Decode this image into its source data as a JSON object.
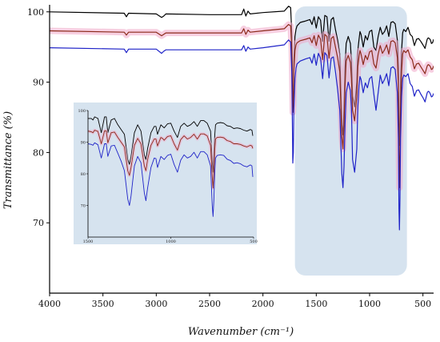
{
  "chart_data": [
    {
      "type": "line",
      "xlabel": "Wavenumber (cm⁻¹)",
      "ylabel": "Transmittance (%)",
      "xlim": [
        4000,
        400
      ],
      "ylim": [
        60,
        101
      ],
      "x_ticks": [
        4000,
        3500,
        3000,
        2500,
        2000,
        1500,
        1000,
        500
      ],
      "y_ticks": [
        70,
        80,
        90,
        100
      ],
      "highlight_region": [
        1700,
        650
      ],
      "series": [
        {
          "color": "#000000",
          "x": [
            4000,
            3300,
            3280,
            3260,
            3000,
            2950,
            2930,
            2910,
            2500,
            2200,
            2180,
            2160,
            2140,
            2120,
            2000,
            1800,
            1760,
            1740,
            1730,
            1725,
            1720,
            1715,
            1710,
            1700,
            1690,
            1680,
            1650,
            1600,
            1560,
            1540,
            1520,
            1500,
            1480,
            1460,
            1440,
            1420,
            1400,
            1380,
            1360,
            1340,
            1320,
            1300,
            1280,
            1260,
            1250,
            1240,
            1230,
            1220,
            1200,
            1180,
            1170,
            1160,
            1140,
            1120,
            1110,
            1100,
            1090,
            1080,
            1060,
            1040,
            1020,
            1000,
            980,
            960,
            940,
            920,
            900,
            880,
            860,
            840,
            820,
            800,
            780,
            760,
            740,
            730,
            725,
            720,
            715,
            710,
            700,
            690,
            680,
            660,
            640,
            620,
            600,
            580,
            560,
            540,
            520,
            500,
            480,
            460,
            450,
            440,
            430,
            420,
            410,
            400
          ],
          "y": [
            100,
            99.8,
            99.3,
            99.8,
            99.7,
            99.2,
            99.4,
            99.7,
            99.6,
            99.6,
            100.4,
            99.4,
            100.1,
            99.7,
            99.9,
            100.1,
            100.8,
            100.6,
            97,
            93,
            86.5,
            88,
            93,
            96.5,
            97.5,
            98,
            98.5,
            98.7,
            98.9,
            98.2,
            99.3,
            97.7,
            99.3,
            98.8,
            95.8,
            99.5,
            99.3,
            95.8,
            98.9,
            99.2,
            97.5,
            96,
            94,
            84,
            82.5,
            86,
            92,
            95.5,
            96.5,
            95.5,
            93,
            88,
            86.5,
            90,
            94.5,
            96,
            97.2,
            96.8,
            95,
            96.6,
            96,
            97.2,
            97.4,
            95,
            94.5,
            96.5,
            97.8,
            96.8,
            97.2,
            98,
            96.5,
            98.5,
            98.6,
            98.3,
            96,
            92,
            83,
            81,
            85,
            90,
            94.5,
            97,
            97.5,
            97.2,
            97.8,
            96.8,
            96.5,
            95.2,
            96.1,
            96.2,
            95.8,
            95.3,
            94.8,
            96.1,
            96.3,
            96.2,
            96,
            95.5,
            95.6,
            96.1
          ]
        },
        {
          "color": "#8b2a1a",
          "x": [
            4000,
            3300,
            3280,
            3260,
            3000,
            2950,
            2930,
            2910,
            2500,
            2200,
            2180,
            2160,
            2140,
            2120,
            2000,
            1800,
            1760,
            1740,
            1730,
            1725,
            1720,
            1715,
            1710,
            1700,
            1690,
            1680,
            1650,
            1600,
            1560,
            1540,
            1520,
            1500,
            1480,
            1460,
            1440,
            1420,
            1400,
            1380,
            1360,
            1340,
            1320,
            1300,
            1280,
            1260,
            1250,
            1240,
            1230,
            1220,
            1200,
            1180,
            1170,
            1160,
            1140,
            1120,
            1110,
            1100,
            1090,
            1080,
            1060,
            1040,
            1020,
            1000,
            980,
            960,
            940,
            920,
            900,
            880,
            860,
            840,
            820,
            800,
            780,
            760,
            740,
            730,
            725,
            720,
            715,
            710,
            700,
            690,
            680,
            660,
            640,
            620,
            600,
            580,
            560,
            540,
            520,
            500,
            480,
            460,
            450,
            440,
            430,
            420,
            410,
            400
          ],
          "y": [
            97.3,
            97.1,
            96.7,
            97.1,
            97.1,
            96.6,
            96.8,
            97.0,
            97.0,
            97.0,
            97.6,
            96.8,
            97.4,
            97.1,
            97.3,
            97.6,
            98.2,
            98.0,
            94.8,
            91,
            85.7,
            87.2,
            91.5,
            94.5,
            95.3,
            95.6,
            95.9,
            96.1,
            96.3,
            95.6,
            96.6,
            95.2,
            96.7,
            96.1,
            93.2,
            96.8,
            96.5,
            93.4,
            96.2,
            96.5,
            95,
            93.5,
            91.5,
            82.2,
            80.5,
            84,
            89.5,
            93,
            93.8,
            92.8,
            90.5,
            86,
            84.5,
            88,
            92.2,
            93.6,
            94.5,
            94,
            92.5,
            93.8,
            93.2,
            94.3,
            94.5,
            92.6,
            92,
            94,
            95.2,
            94.1,
            94.6,
            95.3,
            94,
            95.8,
            95.9,
            95.6,
            93.5,
            89.5,
            79.5,
            75,
            80,
            86.5,
            91.5,
            94,
            94.5,
            94.2,
            94.6,
            93.6,
            93.2,
            91.9,
            92.6,
            92.7,
            92.2,
            91.7,
            91.2,
            92.3,
            92.5,
            92.4,
            92.2,
            91.8,
            91.9,
            92.3
          ]
        },
        {
          "color": "#1f23c8",
          "x": [
            4000,
            3300,
            3280,
            3260,
            3000,
            2950,
            2930,
            2910,
            2500,
            2200,
            2180,
            2160,
            2140,
            2120,
            2000,
            1800,
            1760,
            1740,
            1730,
            1725,
            1720,
            1715,
            1710,
            1700,
            1690,
            1680,
            1650,
            1600,
            1560,
            1540,
            1520,
            1500,
            1480,
            1460,
            1440,
            1420,
            1400,
            1380,
            1360,
            1340,
            1320,
            1300,
            1280,
            1260,
            1250,
            1240,
            1230,
            1220,
            1200,
            1180,
            1170,
            1160,
            1140,
            1120,
            1110,
            1100,
            1090,
            1080,
            1060,
            1040,
            1020,
            1000,
            980,
            960,
            940,
            920,
            900,
            880,
            860,
            840,
            820,
            800,
            780,
            760,
            740,
            730,
            725,
            720,
            715,
            710,
            700,
            690,
            680,
            660,
            640,
            620,
            600,
            580,
            560,
            540,
            520,
            500,
            480,
            460,
            450,
            440,
            430,
            420,
            410,
            400
          ],
          "y": [
            94.9,
            94.7,
            94.2,
            94.7,
            94.7,
            94.1,
            94.4,
            94.6,
            94.6,
            94.6,
            95.2,
            94.4,
            95.0,
            94.7,
            94.9,
            95.3,
            96.0,
            95.7,
            91.5,
            86,
            78.5,
            80,
            86,
            90.5,
            92,
            92.6,
            93,
            93.3,
            93.5,
            92.7,
            94,
            92.4,
            94.1,
            93.4,
            90.5,
            94.2,
            93.8,
            90.6,
            93.4,
            93.6,
            91.5,
            89,
            86,
            77,
            75,
            78,
            84,
            88.5,
            90,
            88.8,
            86.2,
            79,
            77.2,
            80.5,
            86.5,
            89.5,
            90.8,
            90.4,
            88.5,
            89.9,
            89.2,
            90.5,
            90.8,
            88.3,
            86,
            88.5,
            91,
            89.8,
            90.4,
            91.2,
            89.5,
            92,
            92.2,
            91.8,
            88.5,
            82,
            72,
            69,
            73.5,
            82,
            88,
            90.5,
            91,
            90.8,
            91.2,
            89.8,
            89.4,
            88,
            88.8,
            88.9,
            88.3,
            87.8,
            87.2,
            88.5,
            88.7,
            88.6,
            88.3,
            87.9,
            88,
            88.4
          ]
        }
      ]
    },
    {
      "type": "line",
      "inset": true,
      "xlim": [
        1500,
        500
      ],
      "ylim": [
        60,
        100
      ],
      "x_ticks": [
        1500,
        1000,
        500
      ],
      "y_ticks": [
        70,
        80,
        90,
        100
      ],
      "series": [
        {
          "color": "#000000",
          "x": [
            1500,
            1480,
            1470,
            1460,
            1440,
            1420,
            1400,
            1390,
            1380,
            1360,
            1340,
            1320,
            1300,
            1280,
            1260,
            1250,
            1240,
            1220,
            1200,
            1180,
            1160,
            1150,
            1140,
            1120,
            1100,
            1090,
            1080,
            1060,
            1050,
            1040,
            1020,
            1000,
            980,
            960,
            940,
            920,
            900,
            880,
            860,
            840,
            820,
            800,
            780,
            760,
            750,
            745,
            740,
            735,
            730,
            720,
            700,
            680,
            660,
            640,
            620,
            600,
            580,
            560,
            540,
            520,
            510,
            505
          ],
          "y": [
            97.5,
            97.5,
            97,
            98,
            97.5,
            93,
            98,
            98,
            93,
            97,
            97.5,
            95.5,
            94,
            92.5,
            84.5,
            83,
            85.5,
            93,
            95.5,
            93.5,
            86,
            84.5,
            88,
            93,
            95,
            95,
            92.5,
            95.5,
            95,
            94.5,
            95.8,
            96,
            93.5,
            91.5,
            95,
            96,
            95,
            95.5,
            96.5,
            95,
            96.8,
            96.8,
            96,
            93.5,
            84,
            80.5,
            85,
            92,
            95.5,
            96,
            96.2,
            96,
            95.2,
            95,
            94.3,
            94.5,
            94.3,
            93.8,
            93.5,
            94,
            93.8,
            92
          ]
        },
        {
          "color": "#8b2a1a",
          "x": [
            1500,
            1480,
            1470,
            1460,
            1440,
            1420,
            1400,
            1390,
            1380,
            1360,
            1340,
            1320,
            1300,
            1280,
            1260,
            1250,
            1240,
            1220,
            1200,
            1180,
            1160,
            1150,
            1140,
            1120,
            1100,
            1090,
            1080,
            1060,
            1050,
            1040,
            1020,
            1000,
            980,
            960,
            940,
            920,
            900,
            880,
            860,
            840,
            820,
            800,
            780,
            760,
            750,
            745,
            740,
            735,
            730,
            720,
            700,
            680,
            660,
            640,
            620,
            600,
            580,
            560,
            540,
            520,
            510,
            505
          ],
          "y": [
            93.5,
            93.3,
            93,
            93.8,
            93.4,
            89.5,
            93.6,
            93.6,
            89.8,
            93,
            93.2,
            91.5,
            90,
            88.5,
            81,
            79.5,
            82,
            89,
            91.2,
            89.5,
            82.5,
            81,
            84.5,
            89,
            91,
            91,
            88.8,
            91.5,
            91.2,
            90.6,
            91.8,
            92,
            89.5,
            87.5,
            90.8,
            92,
            91,
            91.5,
            92.5,
            91,
            92.6,
            92.6,
            92,
            89,
            79,
            75.5,
            80,
            87.5,
            91,
            91.5,
            91.6,
            91.4,
            90.5,
            90.2,
            89.5,
            89.5,
            89.3,
            88.8,
            88.5,
            89,
            88.8,
            88
          ]
        },
        {
          "color": "#1f23c8",
          "x": [
            1500,
            1480,
            1470,
            1460,
            1440,
            1420,
            1400,
            1390,
            1380,
            1360,
            1340,
            1320,
            1300,
            1280,
            1260,
            1250,
            1240,
            1220,
            1200,
            1180,
            1160,
            1150,
            1140,
            1120,
            1100,
            1090,
            1080,
            1060,
            1050,
            1040,
            1020,
            1000,
            980,
            960,
            940,
            920,
            900,
            880,
            860,
            840,
            820,
            800,
            780,
            760,
            750,
            745,
            740,
            735,
            730,
            720,
            700,
            680,
            660,
            640,
            620,
            600,
            580,
            560,
            540,
            520,
            510,
            505
          ],
          "y": [
            89.5,
            89.3,
            89,
            89.8,
            89.2,
            85,
            89.5,
            89.5,
            85.5,
            88.8,
            89,
            86.5,
            84,
            81,
            72,
            70,
            73,
            82.5,
            85.5,
            83.5,
            74,
            71.5,
            75.5,
            82,
            85,
            84.8,
            82,
            85.5,
            85,
            84.5,
            85.8,
            86.2,
            83,
            80.5,
            84.3,
            86,
            85,
            85.5,
            86.8,
            85,
            87,
            87,
            86,
            82.5,
            70,
            66.5,
            71.5,
            80.5,
            85,
            85.8,
            86,
            85.8,
            84.6,
            84.2,
            83.3,
            83.5,
            83.2,
            82.5,
            82.2,
            82.8,
            82.5,
            79
          ]
        }
      ]
    }
  ]
}
